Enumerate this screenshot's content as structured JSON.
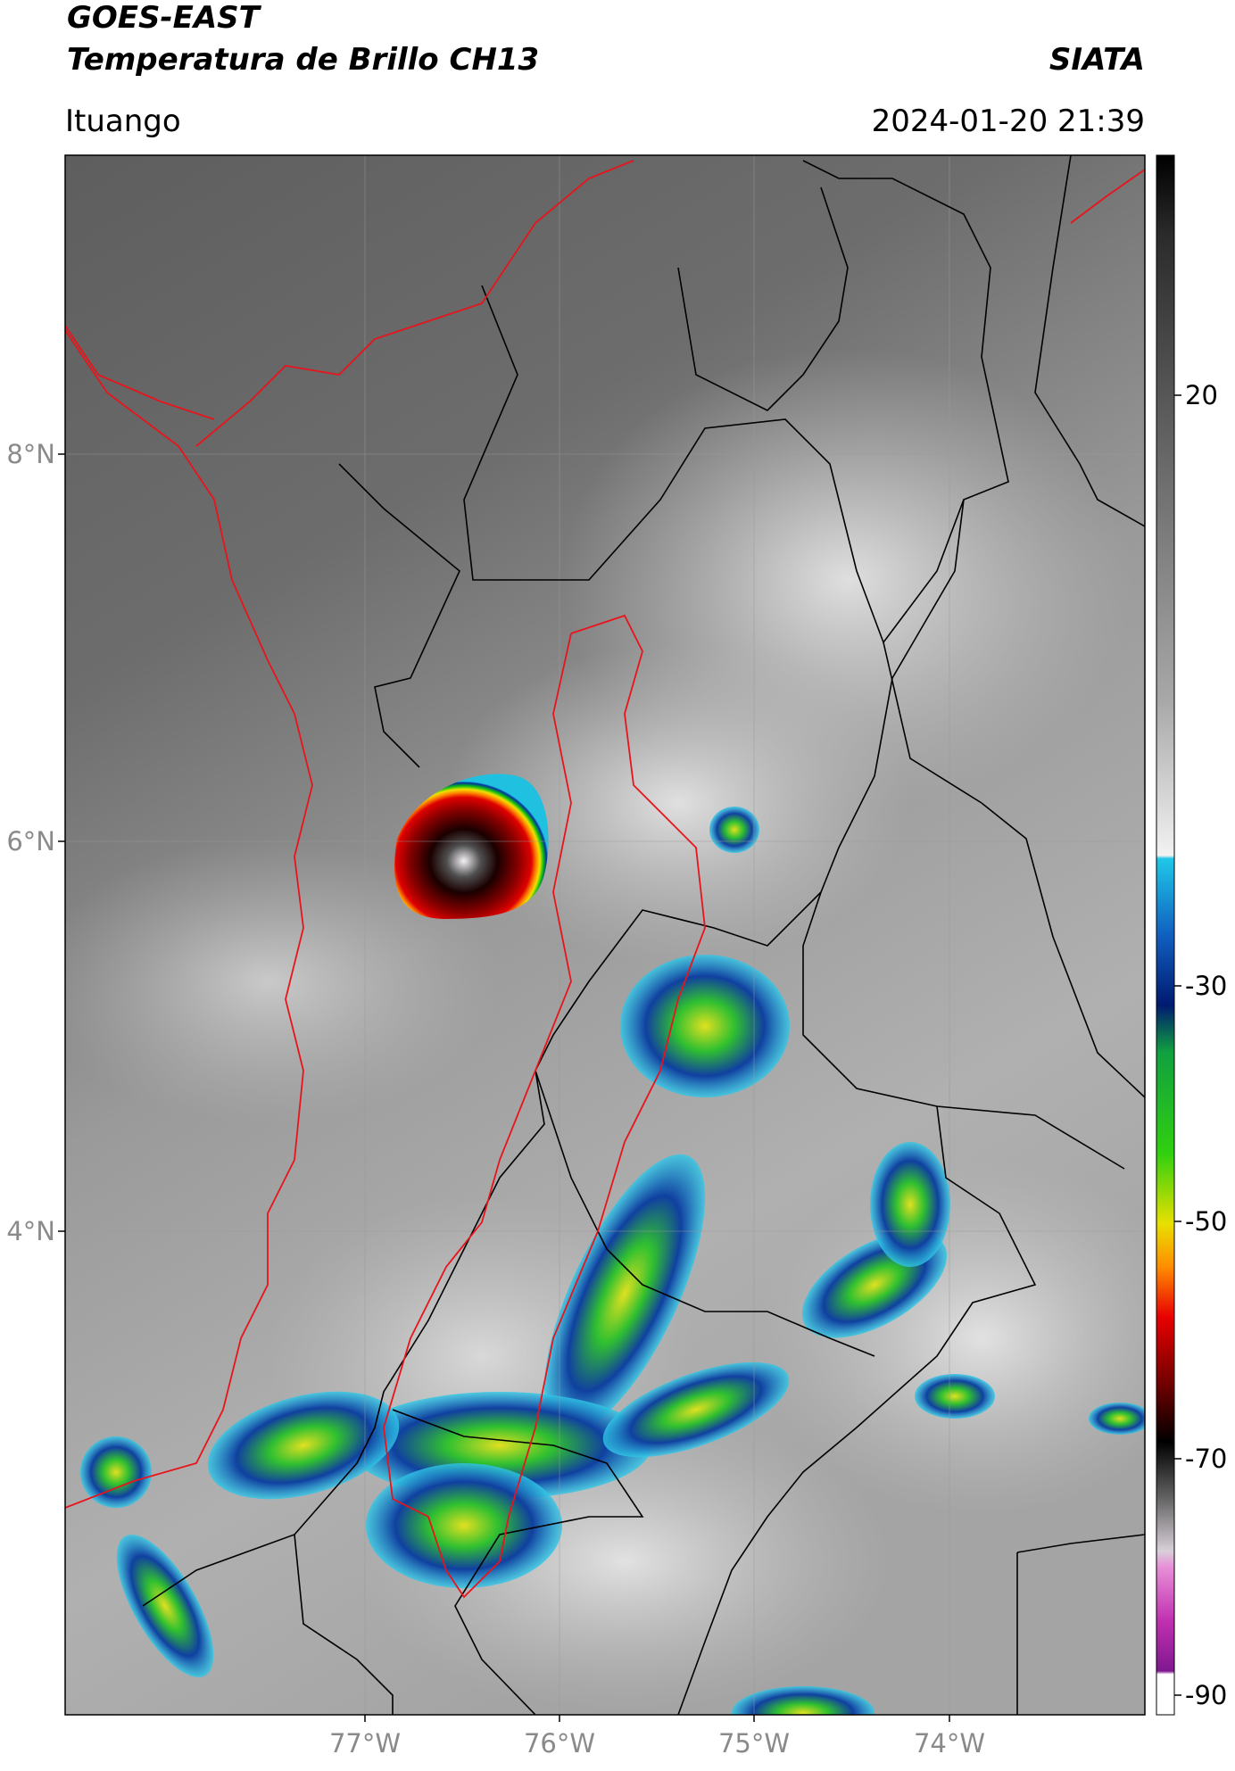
{
  "header": {
    "title": "GOES-EAST",
    "subtitle": "Temperatura de Brillo CH13",
    "organization": "SIATA",
    "location": "Ituango",
    "datetime": "2024-01-20 21:39"
  },
  "map": {
    "lat_labels": [
      "8°N",
      "6°N",
      "4°N"
    ],
    "lon_labels": [
      "77°W",
      "76°W",
      "75°W",
      "74°W"
    ]
  },
  "colorbar": {
    "labels": [
      "20",
      "-30",
      "-50",
      "-70",
      "-90"
    ]
  }
}
